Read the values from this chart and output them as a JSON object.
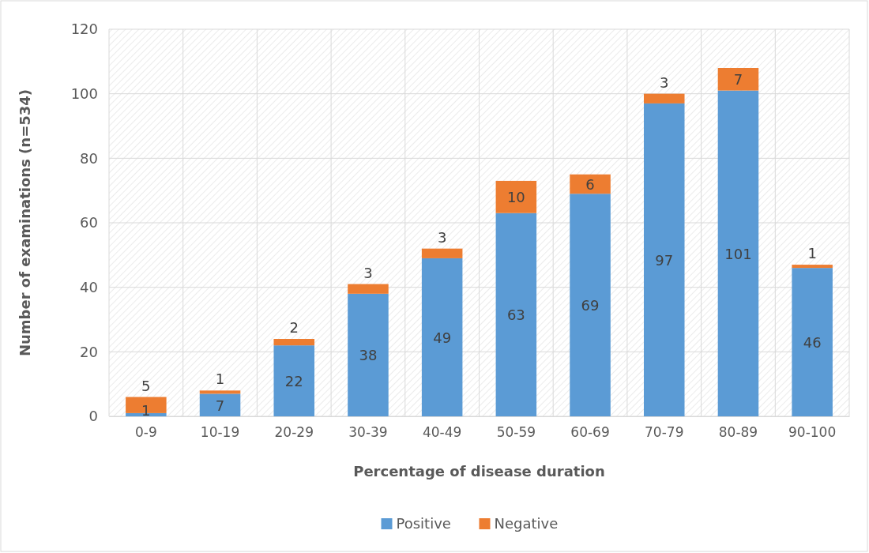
{
  "chart_data": {
    "type": "bar",
    "stacked": true,
    "xlabel": "Percentage of disease duration",
    "ylabel": "Number of examinations (n=534)",
    "categories": [
      "0-9",
      "10-19",
      "20-29",
      "30-39",
      "40-49",
      "50-59",
      "60-69",
      "70-79",
      "80-89",
      "90-100"
    ],
    "series": [
      {
        "name": "Positive",
        "color": "#5b9bd5",
        "values": [
          1,
          7,
          22,
          38,
          49,
          63,
          69,
          97,
          101,
          46
        ]
      },
      {
        "name": "Negative",
        "color": "#ed7d31",
        "values": [
          5,
          1,
          2,
          3,
          3,
          10,
          6,
          3,
          7,
          1
        ]
      }
    ],
    "ylim": [
      0,
      120
    ],
    "yticks": [
      0,
      20,
      40,
      60,
      80,
      100,
      120
    ],
    "grid": true,
    "legend": "bottom",
    "data_labels": true
  }
}
